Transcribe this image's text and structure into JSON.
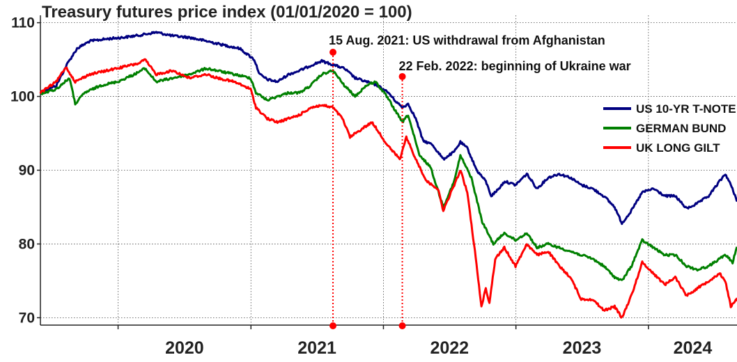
{
  "chart_data": {
    "type": "line",
    "title": "Treasury futures price index (01/01/2020 = 100)",
    "xlabel": "",
    "ylabel": "",
    "x_range": [
      "2019-06-01",
      "2024-09-01"
    ],
    "ylim": [
      69,
      111
    ],
    "yticks": [
      70,
      80,
      90,
      100,
      110
    ],
    "xtick_labels": [
      "2020",
      "2021",
      "2022",
      "2023",
      "2024"
    ],
    "grid": true,
    "legend_position": "right",
    "series": [
      {
        "name": "US 10-YR T-NOTE",
        "color": "#000080",
        "points": [
          [
            "2019-06-01",
            100.5
          ],
          [
            "2019-07-15",
            101.5
          ],
          [
            "2019-08-15",
            104.5
          ],
          [
            "2019-09-10",
            106.5
          ],
          [
            "2019-10-15",
            107.5
          ],
          [
            "2019-12-01",
            107.8
          ],
          [
            "2020-01-15",
            108.0
          ],
          [
            "2020-03-01",
            108.3
          ],
          [
            "2020-04-15",
            108.7
          ],
          [
            "2020-06-01",
            108.2
          ],
          [
            "2020-07-15",
            108.0
          ],
          [
            "2020-09-01",
            107.5
          ],
          [
            "2020-10-15",
            107.0
          ],
          [
            "2020-12-01",
            106.5
          ],
          [
            "2021-01-10",
            105.0
          ],
          [
            "2021-01-25",
            103.0
          ],
          [
            "2021-02-15",
            102.3
          ],
          [
            "2021-03-15",
            102.0
          ],
          [
            "2021-04-15",
            103.0
          ],
          [
            "2021-05-15",
            103.5
          ],
          [
            "2021-06-15",
            104.2
          ],
          [
            "2021-07-15",
            104.8
          ],
          [
            "2021-08-15",
            104.3
          ],
          [
            "2021-09-15",
            103.8
          ],
          [
            "2021-10-15",
            102.5
          ],
          [
            "2021-11-15",
            102.0
          ],
          [
            "2021-12-15",
            101.5
          ],
          [
            "2022-01-15",
            100.5
          ],
          [
            "2022-02-01",
            99.5
          ],
          [
            "2022-02-22",
            98.5
          ],
          [
            "2022-03-10",
            99.0
          ],
          [
            "2022-03-31",
            97.0
          ],
          [
            "2022-04-20",
            94.0
          ],
          [
            "2022-05-15",
            93.5
          ],
          [
            "2022-06-15",
            91.5
          ],
          [
            "2022-07-15",
            92.5
          ],
          [
            "2022-08-01",
            93.8
          ],
          [
            "2022-08-20",
            93.0
          ],
          [
            "2022-09-15",
            90.0
          ],
          [
            "2022-10-10",
            88.5
          ],
          [
            "2022-10-25",
            86.5
          ],
          [
            "2022-11-15",
            87.5
          ],
          [
            "2022-12-01",
            88.5
          ],
          [
            "2022-12-31",
            88.0
          ],
          [
            "2023-01-31",
            89.5
          ],
          [
            "2023-02-28",
            87.5
          ],
          [
            "2023-03-31",
            89.0
          ],
          [
            "2023-04-30",
            89.5
          ],
          [
            "2023-05-31",
            89.0
          ],
          [
            "2023-06-30",
            88.0
          ],
          [
            "2023-07-31",
            87.5
          ],
          [
            "2023-08-31",
            86.5
          ],
          [
            "2023-09-30",
            85.0
          ],
          [
            "2023-10-20",
            82.8
          ],
          [
            "2023-11-15",
            84.5
          ],
          [
            "2023-12-15",
            87.0
          ],
          [
            "2024-01-15",
            87.5
          ],
          [
            "2024-02-15",
            86.5
          ],
          [
            "2024-03-15",
            86.5
          ],
          [
            "2024-04-15",
            84.8
          ],
          [
            "2024-05-15",
            85.5
          ],
          [
            "2024-06-15",
            86.5
          ],
          [
            "2024-07-15",
            88.5
          ],
          [
            "2024-07-31",
            89.5
          ],
          [
            "2024-08-15",
            88.0
          ],
          [
            "2024-08-31",
            86.0
          ],
          [
            "2024-09-01",
            86.3
          ]
        ]
      },
      {
        "name": "GERMAN BUND",
        "color": "#008000",
        "points": [
          [
            "2019-06-01",
            100.3
          ],
          [
            "2019-07-15",
            101.0
          ],
          [
            "2019-08-20",
            102.5
          ],
          [
            "2019-09-05",
            99.0
          ],
          [
            "2019-10-01",
            100.5
          ],
          [
            "2019-11-15",
            101.5
          ],
          [
            "2019-12-31",
            102.0
          ],
          [
            "2020-02-15",
            103.0
          ],
          [
            "2020-03-15",
            103.8
          ],
          [
            "2020-04-15",
            102.0
          ],
          [
            "2020-05-31",
            102.5
          ],
          [
            "2020-07-15",
            103.0
          ],
          [
            "2020-08-31",
            103.8
          ],
          [
            "2020-09-30",
            103.5
          ],
          [
            "2020-11-15",
            103.0
          ],
          [
            "2020-12-31",
            102.5
          ],
          [
            "2021-01-15",
            100.5
          ],
          [
            "2021-02-15",
            99.5
          ],
          [
            "2021-03-15",
            100.0
          ],
          [
            "2021-04-15",
            100.5
          ],
          [
            "2021-05-15",
            100.5
          ],
          [
            "2021-06-15",
            101.5
          ],
          [
            "2021-07-15",
            103.0
          ],
          [
            "2021-08-15",
            103.5
          ],
          [
            "2021-09-15",
            101.5
          ],
          [
            "2021-10-15",
            100.0
          ],
          [
            "2021-11-15",
            101.5
          ],
          [
            "2021-12-10",
            102.0
          ],
          [
            "2022-01-10",
            100.0
          ],
          [
            "2022-02-22",
            96.5
          ],
          [
            "2022-03-10",
            97.5
          ],
          [
            "2022-04-10",
            92.0
          ],
          [
            "2022-05-10",
            90.5
          ],
          [
            "2022-06-15",
            85.0
          ],
          [
            "2022-07-15",
            88.5
          ],
          [
            "2022-08-01",
            92.0
          ],
          [
            "2022-08-31",
            89.0
          ],
          [
            "2022-09-30",
            83.0
          ],
          [
            "2022-10-31",
            80.0
          ],
          [
            "2022-11-30",
            81.5
          ],
          [
            "2022-12-31",
            80.5
          ],
          [
            "2023-01-31",
            81.5
          ],
          [
            "2023-02-28",
            79.5
          ],
          [
            "2023-03-31",
            80.0
          ],
          [
            "2023-04-30",
            79.5
          ],
          [
            "2023-05-31",
            79.0
          ],
          [
            "2023-06-30",
            78.5
          ],
          [
            "2023-07-31",
            78.0
          ],
          [
            "2023-08-31",
            77.0
          ],
          [
            "2023-09-30",
            75.5
          ],
          [
            "2023-10-20",
            75.0
          ],
          [
            "2023-11-15",
            77.0
          ],
          [
            "2023-12-15",
            80.5
          ],
          [
            "2024-01-15",
            79.5
          ],
          [
            "2024-02-15",
            78.5
          ],
          [
            "2024-03-15",
            78.5
          ],
          [
            "2024-04-15",
            77.0
          ],
          [
            "2024-05-15",
            76.5
          ],
          [
            "2024-06-15",
            77.0
          ],
          [
            "2024-07-15",
            78.0
          ],
          [
            "2024-08-01",
            78.5
          ],
          [
            "2024-08-20",
            77.5
          ],
          [
            "2024-08-31",
            79.5
          ],
          [
            "2024-09-01",
            79.6
          ]
        ]
      },
      {
        "name": "UK LONG GILT",
        "color": "#ff0000",
        "points": [
          [
            "2019-06-01",
            100.5
          ],
          [
            "2019-07-15",
            102.0
          ],
          [
            "2019-08-10",
            104.0
          ],
          [
            "2019-09-05",
            102.0
          ],
          [
            "2019-10-15",
            103.0
          ],
          [
            "2019-12-01",
            103.5
          ],
          [
            "2020-01-15",
            104.0
          ],
          [
            "2020-02-28",
            104.5
          ],
          [
            "2020-03-15",
            105.0
          ],
          [
            "2020-04-15",
            103.0
          ],
          [
            "2020-05-31",
            103.5
          ],
          [
            "2020-07-15",
            102.5
          ],
          [
            "2020-08-31",
            103.0
          ],
          [
            "2020-09-30",
            102.5
          ],
          [
            "2020-11-15",
            102.0
          ],
          [
            "2020-12-31",
            101.0
          ],
          [
            "2021-01-15",
            98.5
          ],
          [
            "2021-02-15",
            97.0
          ],
          [
            "2021-03-15",
            96.5
          ],
          [
            "2021-04-15",
            97.0
          ],
          [
            "2021-05-15",
            97.5
          ],
          [
            "2021-06-15",
            98.5
          ],
          [
            "2021-07-15",
            98.8
          ],
          [
            "2021-08-15",
            98.5
          ],
          [
            "2021-09-10",
            97.0
          ],
          [
            "2021-10-01",
            94.5
          ],
          [
            "2021-10-31",
            95.5
          ],
          [
            "2021-11-30",
            96.5
          ],
          [
            "2021-12-15",
            95.5
          ],
          [
            "2022-01-10",
            93.5
          ],
          [
            "2022-02-15",
            91.5
          ],
          [
            "2022-02-22",
            92.5
          ],
          [
            "2022-03-05",
            94.5
          ],
          [
            "2022-03-31",
            91.5
          ],
          [
            "2022-04-30",
            88.5
          ],
          [
            "2022-05-31",
            87.5
          ],
          [
            "2022-06-15",
            84.5
          ],
          [
            "2022-07-15",
            88.0
          ],
          [
            "2022-08-01",
            90.0
          ],
          [
            "2022-08-20",
            87.0
          ],
          [
            "2022-09-10",
            79.0
          ],
          [
            "2022-09-28",
            71.5
          ],
          [
            "2022-10-10",
            74.0
          ],
          [
            "2022-10-20",
            72.0
          ],
          [
            "2022-11-05",
            78.0
          ],
          [
            "2022-11-30",
            79.5
          ],
          [
            "2022-12-31",
            77.0
          ],
          [
            "2023-01-31",
            80.0
          ],
          [
            "2023-02-28",
            78.5
          ],
          [
            "2023-03-31",
            79.0
          ],
          [
            "2023-04-30",
            77.0
          ],
          [
            "2023-05-31",
            75.5
          ],
          [
            "2023-06-30",
            72.5
          ],
          [
            "2023-07-31",
            72.5
          ],
          [
            "2023-08-31",
            71.0
          ],
          [
            "2023-09-30",
            71.5
          ],
          [
            "2023-10-20",
            70.0
          ],
          [
            "2023-11-15",
            73.0
          ],
          [
            "2023-12-15",
            77.5
          ],
          [
            "2024-01-15",
            76.0
          ],
          [
            "2024-02-15",
            74.5
          ],
          [
            "2024-03-15",
            75.5
          ],
          [
            "2024-04-15",
            73.0
          ],
          [
            "2024-05-15",
            74.0
          ],
          [
            "2024-06-15",
            75.0
          ],
          [
            "2024-07-15",
            76.0
          ],
          [
            "2024-07-31",
            75.0
          ],
          [
            "2024-08-15",
            71.5
          ],
          [
            "2024-08-31",
            72.5
          ],
          [
            "2024-09-01",
            72.7
          ]
        ]
      }
    ],
    "annotations": [
      {
        "date": "2021-08-15",
        "text": "15 Aug. 2021: US withdrawal from Afghanistan",
        "marker_value": 106.0
      },
      {
        "date": "2022-02-22",
        "text": "22 Feb. 2022: beginning of Ukraine war",
        "marker_value": 102.7
      }
    ]
  }
}
